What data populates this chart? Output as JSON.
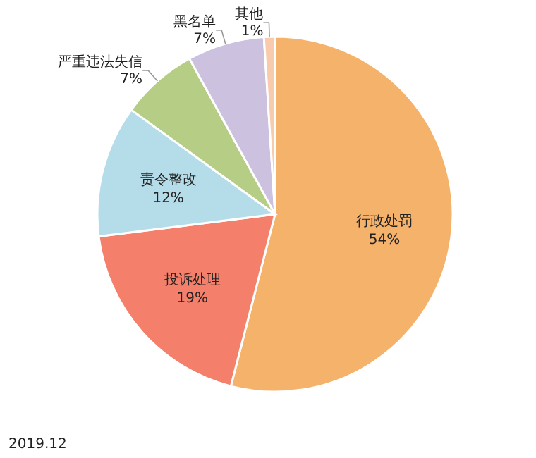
{
  "chart_data": {
    "type": "pie",
    "categories": [
      "行政处罚",
      "投诉处理",
      "责令整改",
      "严重违法失信",
      "黑名单",
      "其他"
    ],
    "values": [
      54,
      19,
      12,
      7,
      7,
      1
    ],
    "colors": [
      "#f5b26b",
      "#f4806b",
      "#b5dde9",
      "#b6cd86",
      "#ccc1de",
      "#f8cbad"
    ],
    "value_labels": [
      "54%",
      "19%",
      "12%",
      "7%",
      "7%",
      "1%"
    ],
    "annotations": [
      "2019.12"
    ]
  }
}
